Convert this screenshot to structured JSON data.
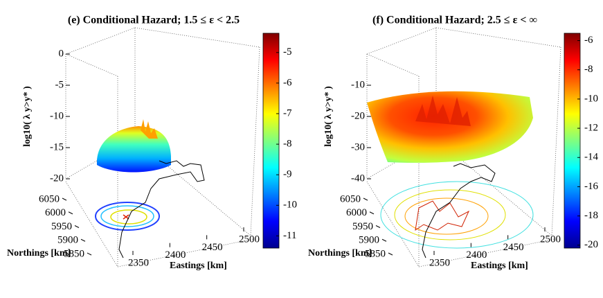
{
  "chart_data": [
    {
      "type": "surface",
      "title": "(e) Conditional Hazard; 1.5 ≤ ε < 2.5",
      "xlabel": "Eastings [km]",
      "ylabel": "Northings [km]",
      "zlabel": "log10( λ y>y* )",
      "xlim": [
        2350,
        2500
      ],
      "xticks": [
        2350,
        2400,
        2450,
        2500
      ],
      "ylim": [
        5850,
        6050
      ],
      "yticks": [
        5850,
        5900,
        5950,
        6000,
        6050
      ],
      "zlim": [
        -20,
        0
      ],
      "zticks": [
        0,
        -5,
        -10,
        -15,
        -20
      ],
      "colormap": "jet",
      "clim": [
        -11.4,
        -4.37
      ],
      "cticks": [
        -5,
        -6,
        -7,
        -8,
        -9,
        -10,
        -11
      ]
    },
    {
      "type": "surface",
      "title": "(f) Conditional Hazard; 2.5 ≤ ε < ∞",
      "xlabel": "Eastings [km]",
      "ylabel": "Northings [km]",
      "zlabel": "log10( λ y>y* )",
      "xlim": [
        2350,
        2500
      ],
      "xticks": [
        2350,
        2400,
        2450,
        2500
      ],
      "ylim": [
        5850,
        6050
      ],
      "yticks": [
        5850,
        5900,
        5950,
        6000,
        6050
      ],
      "zlim": [
        -40,
        0
      ],
      "zticks": [
        -10,
        -20,
        -30,
        -40
      ],
      "colormap": "jet",
      "clim": [
        -20.2,
        -5.5
      ],
      "cticks": [
        -6,
        -8,
        -10,
        -12,
        -14,
        -16,
        -18,
        -20
      ]
    }
  ]
}
